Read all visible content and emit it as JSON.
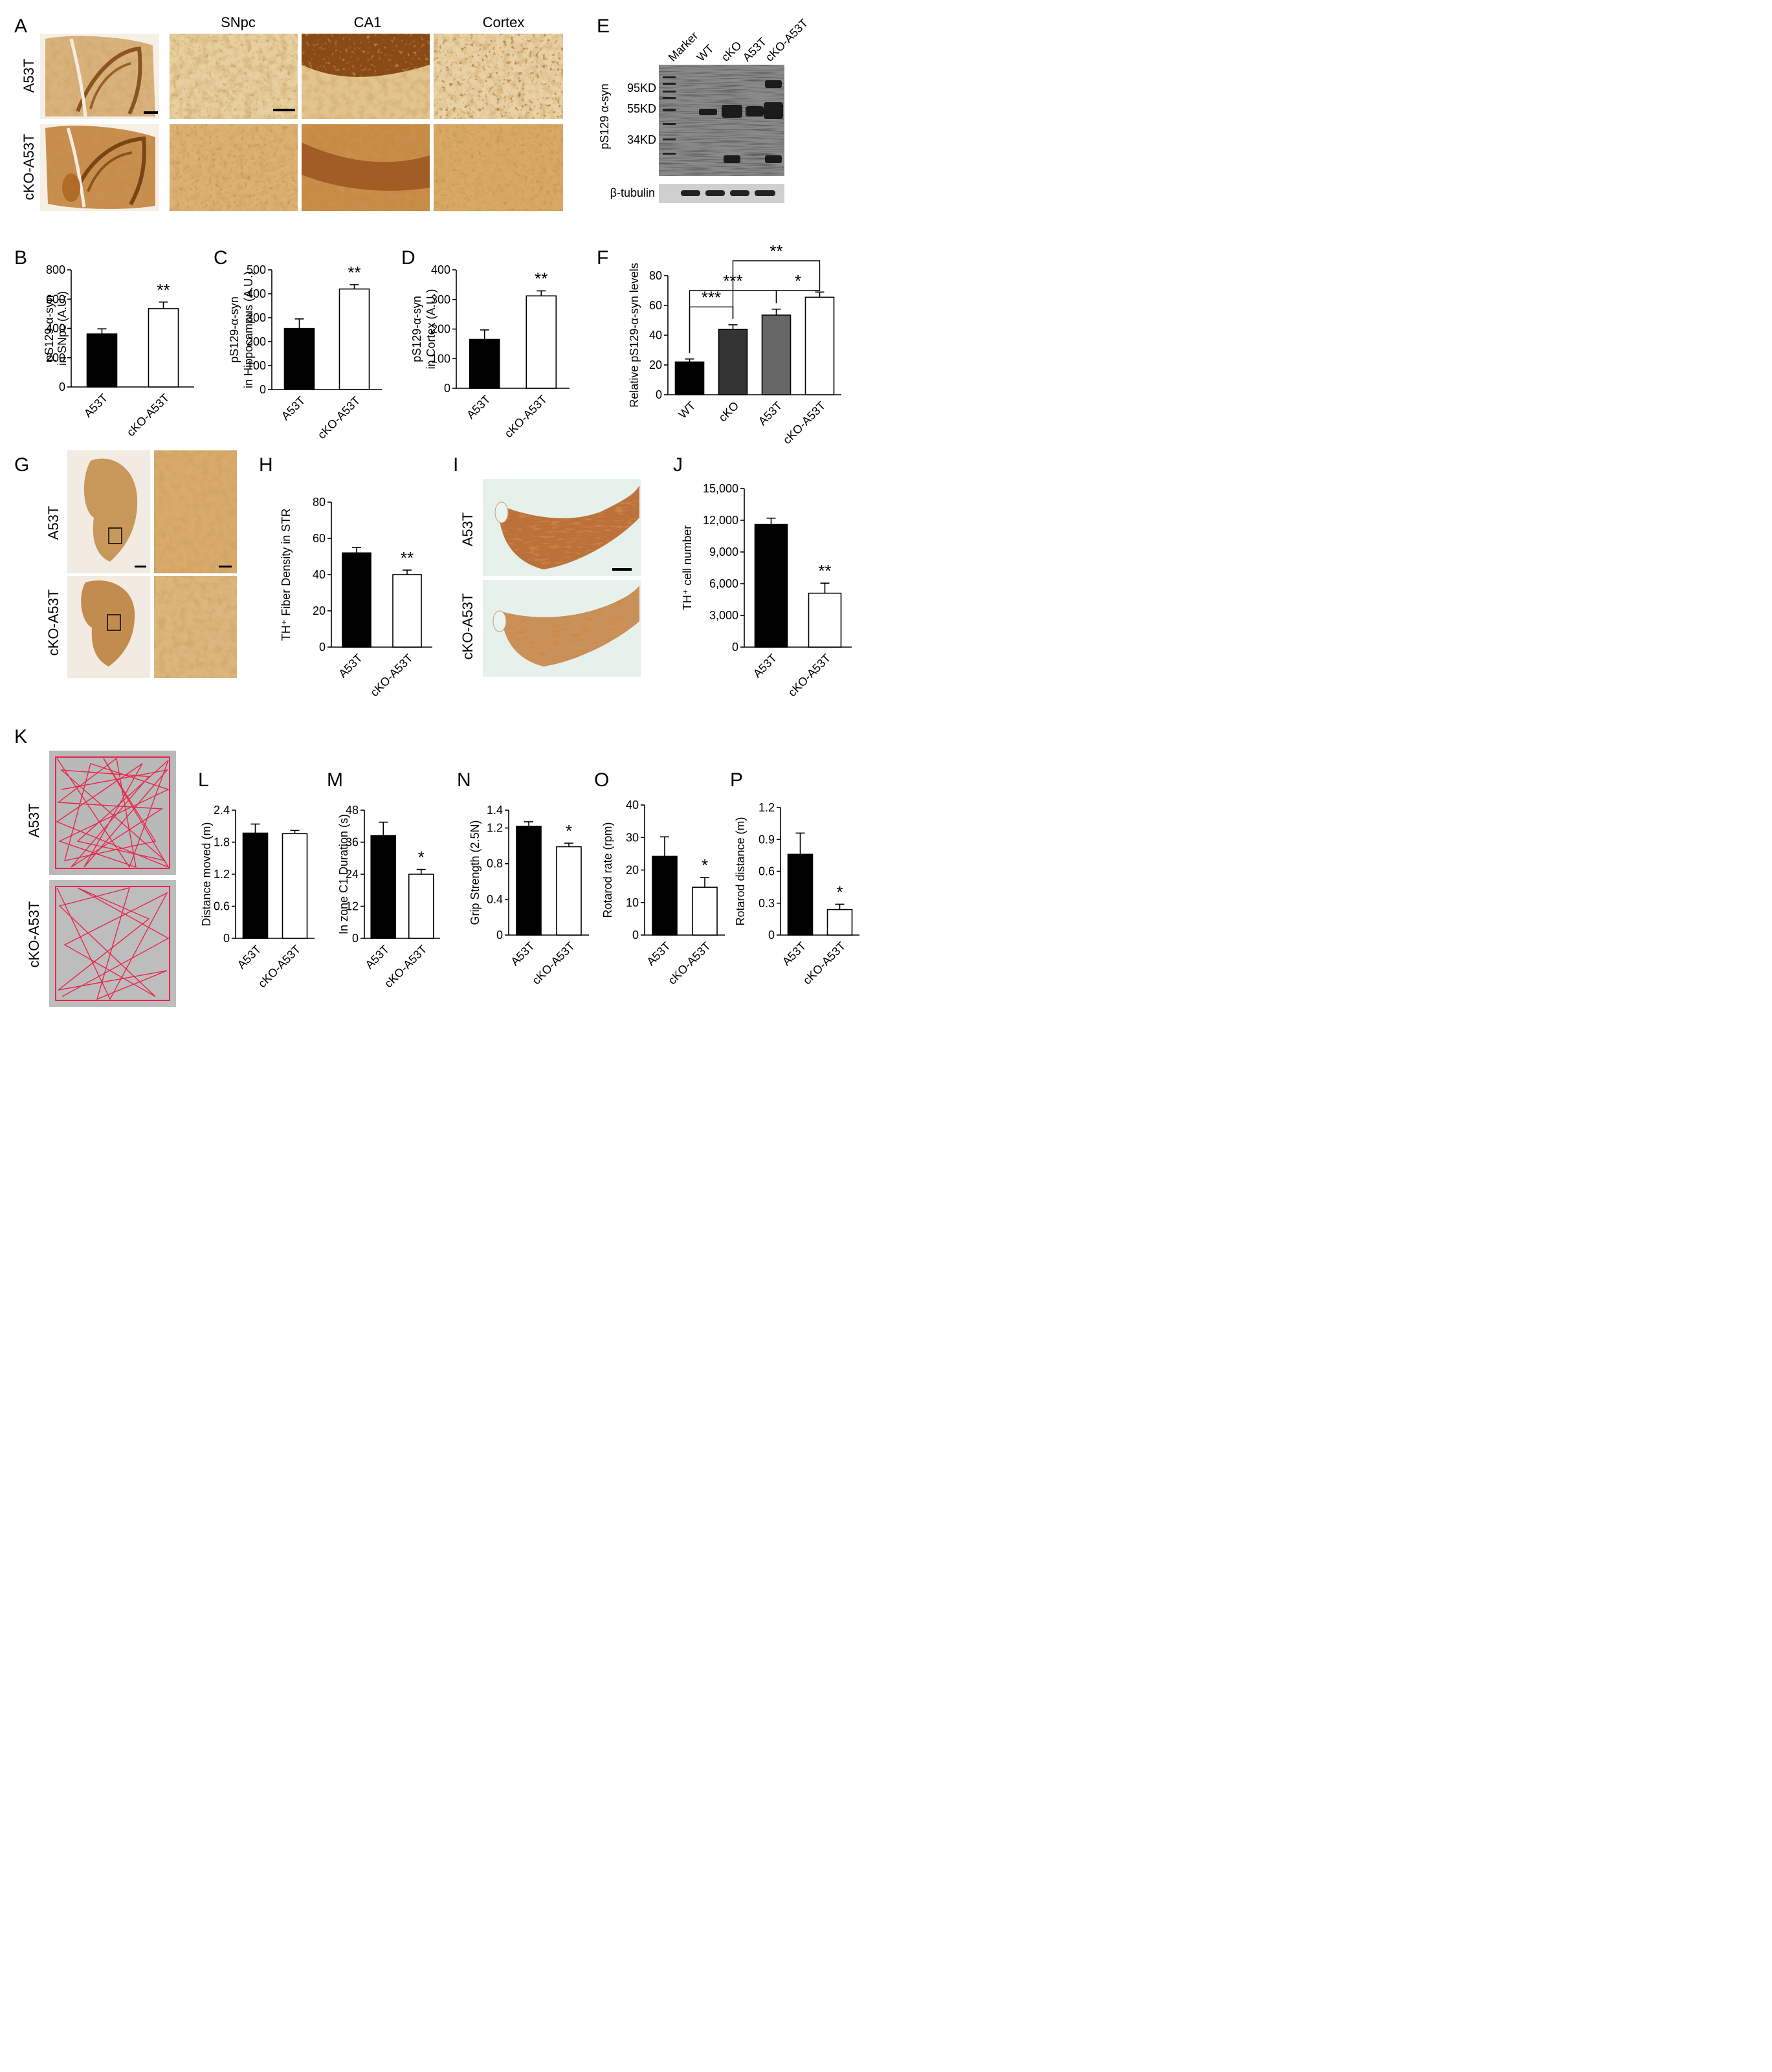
{
  "panel_letters": [
    "A",
    "B",
    "C",
    "D",
    "E",
    "F",
    "G",
    "H",
    "I",
    "J",
    "K",
    "L",
    "M",
    "N",
    "O",
    "P"
  ],
  "panel_a": {
    "columns": [
      "SNpc",
      "CA1",
      "Cortex"
    ],
    "rows": [
      "A53T",
      "cKO-A53T"
    ]
  },
  "panel_e": {
    "lanes": [
      "Marker",
      "WT",
      "cKO",
      "A53T",
      "cKO-A53T"
    ],
    "markers": [
      "95KD",
      "55KD",
      "34KD"
    ],
    "ylabel": "pS129 α-syn",
    "loading": "β-tubulin"
  },
  "panel_g": {
    "rows": [
      "A53T",
      "cKO-A53T"
    ]
  },
  "panel_i": {
    "rows": [
      "A53T",
      "cKO-A53T"
    ]
  },
  "panel_k": {
    "rows": [
      "A53T",
      "cKO-A53T"
    ]
  },
  "colors": {
    "stain_brown": "#c08a4a",
    "track_red": "#e8264a",
    "bar_black": "#000000",
    "bar_dark": "#333333",
    "bar_mid": "#666666"
  },
  "chart_data": [
    {
      "id": "B",
      "type": "bar",
      "categories": [
        "A53T",
        "cKO-A53T"
      ],
      "values": [
        362,
        535
      ],
      "errors": [
        35,
        45
      ],
      "ylabel": [
        "pS129-α-syn",
        "in SNpc (A.U.)"
      ],
      "ylim": [
        0,
        800
      ],
      "ticks": [
        0,
        200,
        400,
        600,
        800
      ],
      "tick_labels": [
        "0",
        "200",
        "400",
        "600",
        "800"
      ],
      "annotations": [
        {
          "bar": 1,
          "text": "**"
        }
      ]
    },
    {
      "id": "C",
      "type": "bar",
      "categories": [
        "A53T",
        "cKO-A53T"
      ],
      "values": [
        255,
        420
      ],
      "errors": [
        40,
        18
      ],
      "ylabel": [
        "pS129-α-syn",
        "in Hippocampus (A.U.)"
      ],
      "ylim": [
        0,
        500
      ],
      "ticks": [
        0,
        100,
        200,
        300,
        400,
        500
      ],
      "tick_labels": [
        "0",
        "100",
        "200",
        "300",
        "400",
        "500"
      ],
      "annotations": [
        {
          "bar": 1,
          "text": "**"
        }
      ]
    },
    {
      "id": "D",
      "type": "bar",
      "categories": [
        "A53T",
        "cKO-A53T"
      ],
      "values": [
        165,
        312
      ],
      "errors": [
        32,
        17
      ],
      "ylabel": [
        "pS129-α-syn",
        "in Cortex (A.U.)"
      ],
      "ylim": [
        0,
        400
      ],
      "ticks": [
        0,
        100,
        200,
        300,
        400
      ],
      "tick_labels": [
        "0",
        "100",
        "200",
        "300",
        "400"
      ],
      "annotations": [
        {
          "bar": 1,
          "text": "**"
        }
      ]
    },
    {
      "id": "F",
      "type": "bar",
      "categories": [
        "WT",
        "cKO",
        "A53T",
        "cKO-A53T"
      ],
      "values": [
        22,
        44,
        53.5,
        65.5
      ],
      "errors": [
        2,
        3,
        4,
        3.5
      ],
      "ylabel": [
        "Relative pS129-α-syn levels"
      ],
      "ylim": [
        0,
        80
      ],
      "ticks": [
        0,
        20,
        40,
        60,
        80
      ],
      "tick_labels": [
        "0",
        "20",
        "40",
        "60",
        "80"
      ],
      "brackets": [
        {
          "from": 0,
          "to": 1,
          "y": 59,
          "text": "***"
        },
        {
          "from": 0,
          "to": 2,
          "y": 70,
          "text": "***"
        },
        {
          "from": 2,
          "to": 3,
          "y": 70,
          "text": "*"
        },
        {
          "from": 1,
          "to": 3,
          "y": 90,
          "text": "**"
        }
      ]
    },
    {
      "id": "H",
      "type": "bar",
      "categories": [
        "A53T",
        "cKO-A53T"
      ],
      "values": [
        52,
        40
      ],
      "errors": [
        3,
        2.5
      ],
      "ylabel": [
        "TH⁺ Fiber Density in STR"
      ],
      "ylim": [
        0,
        80
      ],
      "ticks": [
        0,
        20,
        40,
        60,
        80
      ],
      "tick_labels": [
        "0",
        "20",
        "40",
        "60",
        "80"
      ],
      "annotations": [
        {
          "bar": 1,
          "text": "**"
        }
      ]
    },
    {
      "id": "J",
      "type": "bar",
      "categories": [
        "A53T",
        "cKO-A53T"
      ],
      "values": [
        11600,
        5100
      ],
      "errors": [
        600,
        950
      ],
      "ylabel": [
        "TH⁺ cell number"
      ],
      "ylim": [
        0,
        15000
      ],
      "ticks": [
        0,
        3000,
        6000,
        9000,
        12000,
        15000
      ],
      "tick_labels": [
        "0",
        "3,000",
        "6,000",
        "9,000",
        "12,000",
        "15,000"
      ],
      "annotations": [
        {
          "bar": 1,
          "text": "**"
        }
      ]
    },
    {
      "id": "L",
      "type": "bar",
      "categories": [
        "A53T",
        "cKO-A53T"
      ],
      "values": [
        1.97,
        1.96
      ],
      "errors": [
        0.17,
        0.06
      ],
      "ylabel": [
        "Distance moved (m)"
      ],
      "ylim": [
        0,
        2.4
      ],
      "ticks": [
        0,
        0.6,
        1.2,
        1.8,
        2.4
      ],
      "tick_labels": [
        "0",
        "0.6",
        "1.2",
        "1.8",
        "2.4"
      ],
      "annotations": []
    },
    {
      "id": "M",
      "type": "bar",
      "categories": [
        "A53T",
        "cKO-A53T"
      ],
      "values": [
        38.5,
        24
      ],
      "errors": [
        5,
        1.8
      ],
      "ylabel": [
        "In zone C1 Duration (s)"
      ],
      "ylim": [
        0,
        48
      ],
      "ticks": [
        0,
        12,
        24,
        36,
        48
      ],
      "tick_labels": [
        "0",
        "12",
        "24",
        "36",
        "48"
      ],
      "annotations": [
        {
          "bar": 1,
          "text": "*"
        }
      ]
    },
    {
      "id": "N",
      "type": "bar",
      "categories": [
        "A53T",
        "cKO-A53T"
      ],
      "values": [
        1.22,
        0.99
      ],
      "errors": [
        0.05,
        0.04
      ],
      "ylabel": [
        "Grip Strength (2.5N)"
      ],
      "ylim": [
        0,
        1.4
      ],
      "ticks": [
        0,
        0.4,
        0.8,
        1.2
      ],
      "tick_labels": [
        "0",
        "0.4",
        "0.8",
        "1.2"
      ],
      "top_tick": 1.4,
      "top_tick_label": "1.4",
      "annotations": [
        {
          "bar": 1,
          "text": "*"
        }
      ]
    },
    {
      "id": "O",
      "type": "bar",
      "categories": [
        "A53T",
        "cKO-A53T"
      ],
      "values": [
        24.2,
        14.7
      ],
      "errors": [
        6,
        3
      ],
      "ylabel": [
        "Rotarod rate (rpm)"
      ],
      "ylim": [
        0,
        40
      ],
      "ticks": [
        0,
        10,
        20,
        30,
        40
      ],
      "tick_labels": [
        "0",
        "10",
        "20",
        "30",
        "40"
      ],
      "annotations": [
        {
          "bar": 1,
          "text": "*"
        }
      ]
    },
    {
      "id": "P",
      "type": "bar",
      "categories": [
        "A53T",
        "cKO-A53T"
      ],
      "values": [
        0.76,
        0.24
      ],
      "errors": [
        0.2,
        0.05
      ],
      "ylabel": [
        "Rotarod distance (m)"
      ],
      "ylim": [
        0,
        1.2
      ],
      "ticks": [
        0,
        0.3,
        0.6,
        0.9,
        1.2
      ],
      "tick_labels": [
        "0",
        "0.3",
        "0.6",
        "0.9",
        "1.2"
      ],
      "annotations": [
        {
          "bar": 1,
          "text": "*"
        }
      ]
    }
  ]
}
